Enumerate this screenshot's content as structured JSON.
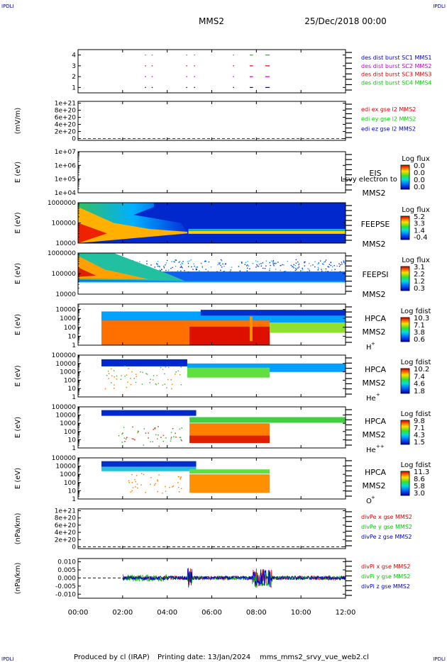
{
  "header": {
    "corner_tl": "IPDLI",
    "corner_tr": "IPDLI",
    "corner_bl": "IPDLI",
    "corner_br": "IPDLI",
    "spacecraft": "MMS2",
    "date": "25/Dec/2018 00:00"
  },
  "footer": {
    "produced_by": "Produced by cl (IRAP)",
    "printing_date": "Printing date: 13/Jan/2024",
    "file": "mms_mms2_srvy_vue_web2.cl"
  },
  "colors": {
    "sc1": "#0000cc",
    "sc2": "#cc00cc",
    "sc3": "#dd0000",
    "sc4": "#00cc00",
    "red": "#dd0000",
    "green": "#00cc00",
    "blue": "#0000cc"
  },
  "chart_data": [
    {
      "id": "burst",
      "type": "scatter",
      "ylabel": "",
      "yticks": [
        "1",
        "2",
        "3",
        "4"
      ],
      "ylim": [
        0.5,
        4.5
      ],
      "xlim": [
        0,
        12
      ],
      "legend": [
        "des dist burst SC1 MMS1",
        "des dist burst SC2 MMS2",
        "des dist burst SC3 MMS3",
        "des dist burst SC4 MMS4"
      ],
      "series": [
        {
          "name": "des dist burst SC1 MMS1",
          "y": 1,
          "intervals": [
            [
              3.0,
              3.05
            ],
            [
              3.3,
              3.35
            ],
            [
              4.85,
              4.9
            ],
            [
              5.2,
              5.25
            ],
            [
              6.95,
              7.0
            ],
            [
              7.7,
              7.85
            ],
            [
              8.4,
              8.6
            ]
          ]
        },
        {
          "name": "des dist burst SC2 MMS2",
          "y": 2,
          "intervals": [
            [
              3.0,
              3.05
            ],
            [
              3.3,
              3.35
            ],
            [
              4.85,
              4.9
            ],
            [
              5.2,
              5.25
            ],
            [
              6.95,
              7.0
            ],
            [
              7.7,
              7.85
            ],
            [
              8.4,
              8.6
            ]
          ]
        },
        {
          "name": "des dist burst SC3 MMS3",
          "y": 3,
          "intervals": [
            [
              3.0,
              3.05
            ],
            [
              3.3,
              3.35
            ],
            [
              4.85,
              4.9
            ],
            [
              5.2,
              5.25
            ],
            [
              6.95,
              7.0
            ],
            [
              7.7,
              7.85
            ],
            [
              8.4,
              8.6
            ]
          ]
        },
        {
          "name": "des dist burst SC4 MMS4",
          "y": 4,
          "intervals": [
            [
              3.0,
              3.05
            ],
            [
              3.3,
              3.35
            ],
            [
              4.85,
              4.9
            ],
            [
              5.2,
              5.25
            ],
            [
              6.95,
              7.0
            ],
            [
              7.7,
              7.85
            ],
            [
              8.4,
              8.6
            ]
          ]
        }
      ]
    },
    {
      "id": "edi",
      "type": "line",
      "ylabel": "(mV/m)",
      "yticks": [
        "0",
        "2e+20",
        "4e+20",
        "6e+20",
        "8e+20",
        "1e+21"
      ],
      "ylim": [
        -5e+19,
        1.05e+21
      ],
      "xlim": [
        0,
        12
      ],
      "legend": [
        "edi ex gse l2 MMS2",
        "edi ey gse l2 MMS2",
        "edi ez gse l2 MMS2"
      ]
    },
    {
      "id": "eis",
      "type": "heatmap",
      "ylabel": "E (eV)",
      "yticks": [
        "1e+04",
        "1e+05",
        "1e+06",
        "1e+07"
      ],
      "ylim": [
        10000,
        10000000
      ],
      "log_y": true,
      "xlim": [
        0,
        12
      ],
      "instrument": "EIS",
      "overlay_text": "Lsvy electron to",
      "spacecraft": "MMS2",
      "colorbar": {
        "title": "Log flux",
        "ticks": [
          "0.0",
          "0.0",
          "0.0",
          "0.0"
        ]
      }
    },
    {
      "id": "feeps_e",
      "type": "heatmap",
      "ylabel": "E (eV)",
      "yticks": [
        "10000",
        "100000",
        "1000000"
      ],
      "ylim": [
        10000,
        1000000
      ],
      "log_y": true,
      "xlim": [
        0,
        12
      ],
      "instrument": "FEEPSE",
      "spacecraft": "MMS2",
      "colorbar": {
        "title": "Log flux",
        "ticks": [
          "5.2",
          "3.3",
          "1.4",
          "-0.4"
        ]
      }
    },
    {
      "id": "feeps_i",
      "type": "heatmap",
      "ylabel": "E (eV)",
      "yticks": [
        "10000",
        "100000",
        "1000000"
      ],
      "ylim": [
        10000,
        1000000
      ],
      "log_y": true,
      "xlim": [
        0,
        12
      ],
      "instrument": "FEEPSI",
      "spacecraft": "MMS2",
      "colorbar": {
        "title": "Log flux",
        "ticks": [
          "3.1",
          "2.2",
          "1.2",
          "0.3"
        ]
      }
    },
    {
      "id": "hpca_h",
      "type": "heatmap",
      "ylabel": "E (eV)",
      "yticks": [
        "1",
        "10",
        "100",
        "1000",
        "10000"
      ],
      "ylim": [
        1,
        40000
      ],
      "log_y": true,
      "xlim": [
        0,
        12
      ],
      "instrument": "HPCA",
      "spacecraft": "MMS2",
      "species_base": "H",
      "species_sup": "+",
      "colorbar": {
        "title": "Log fdist",
        "ticks": [
          "10.3",
          "7.1",
          "3.8",
          "0.6"
        ]
      }
    },
    {
      "id": "hpca_he",
      "type": "heatmap",
      "ylabel": "E (eV)",
      "yticks": [
        "1",
        "10",
        "100",
        "1000",
        "10000",
        "100000"
      ],
      "ylim": [
        1,
        100000
      ],
      "log_y": true,
      "xlim": [
        0,
        12
      ],
      "instrument": "HPCA",
      "spacecraft": "MMS2",
      "species_base": "He",
      "species_sup": "+",
      "colorbar": {
        "title": "Log fdist",
        "ticks": [
          "10.2",
          "7.4",
          "4.6",
          "1.8"
        ]
      }
    },
    {
      "id": "hpca_hepp",
      "type": "heatmap",
      "ylabel": "E (eV)",
      "yticks": [
        "1",
        "10",
        "100",
        "1000",
        "10000",
        "100000"
      ],
      "ylim": [
        1,
        100000
      ],
      "log_y": true,
      "xlim": [
        0,
        12
      ],
      "instrument": "HPCA",
      "spacecraft": "MMS2",
      "species_base": "He",
      "species_sup": "++",
      "colorbar": {
        "title": "Log fdist",
        "ticks": [
          "9.8",
          "7.1",
          "4.3",
          "1.5"
        ]
      }
    },
    {
      "id": "hpca_o",
      "type": "heatmap",
      "ylabel": "E (eV)",
      "yticks": [
        "1",
        "10",
        "100",
        "1000",
        "10000",
        "100000"
      ],
      "ylim": [
        1,
        100000
      ],
      "log_y": true,
      "xlim": [
        0,
        12
      ],
      "instrument": "HPCA",
      "spacecraft": "MMS2",
      "species_base": "O",
      "species_sup": "+",
      "colorbar": {
        "title": "Log fdist",
        "ticks": [
          "11.3",
          "8.6",
          "5.8",
          "3.0"
        ]
      }
    },
    {
      "id": "divpe",
      "type": "line",
      "ylabel": "(nPa/km)",
      "yticks": [
        "0",
        "2e+20",
        "4e+20",
        "6e+20",
        "8e+20",
        "1e+21"
      ],
      "ylim": [
        -5e+19,
        1.05e+21
      ],
      "xlim": [
        0,
        12
      ],
      "legend": [
        "divPe x gse MMS2",
        "divPe y gse MMS2",
        "divPe z gse MMS2"
      ]
    },
    {
      "id": "divpi",
      "type": "line",
      "ylabel": "(nPa/km)",
      "yticks": [
        "-0.010",
        "-0.005",
        "0.000",
        "0.005",
        "0.010"
      ],
      "ylim": [
        -0.0125,
        0.012
      ],
      "xlim": [
        0,
        12
      ],
      "xticks": [
        "00:00",
        "02:00",
        "04:00",
        "06:00",
        "08:00",
        "10:00",
        "12:00"
      ],
      "legend": [
        "divPi x gse MMS2",
        "divPi y gse MMS2",
        "divPi z gse MMS2"
      ]
    }
  ]
}
